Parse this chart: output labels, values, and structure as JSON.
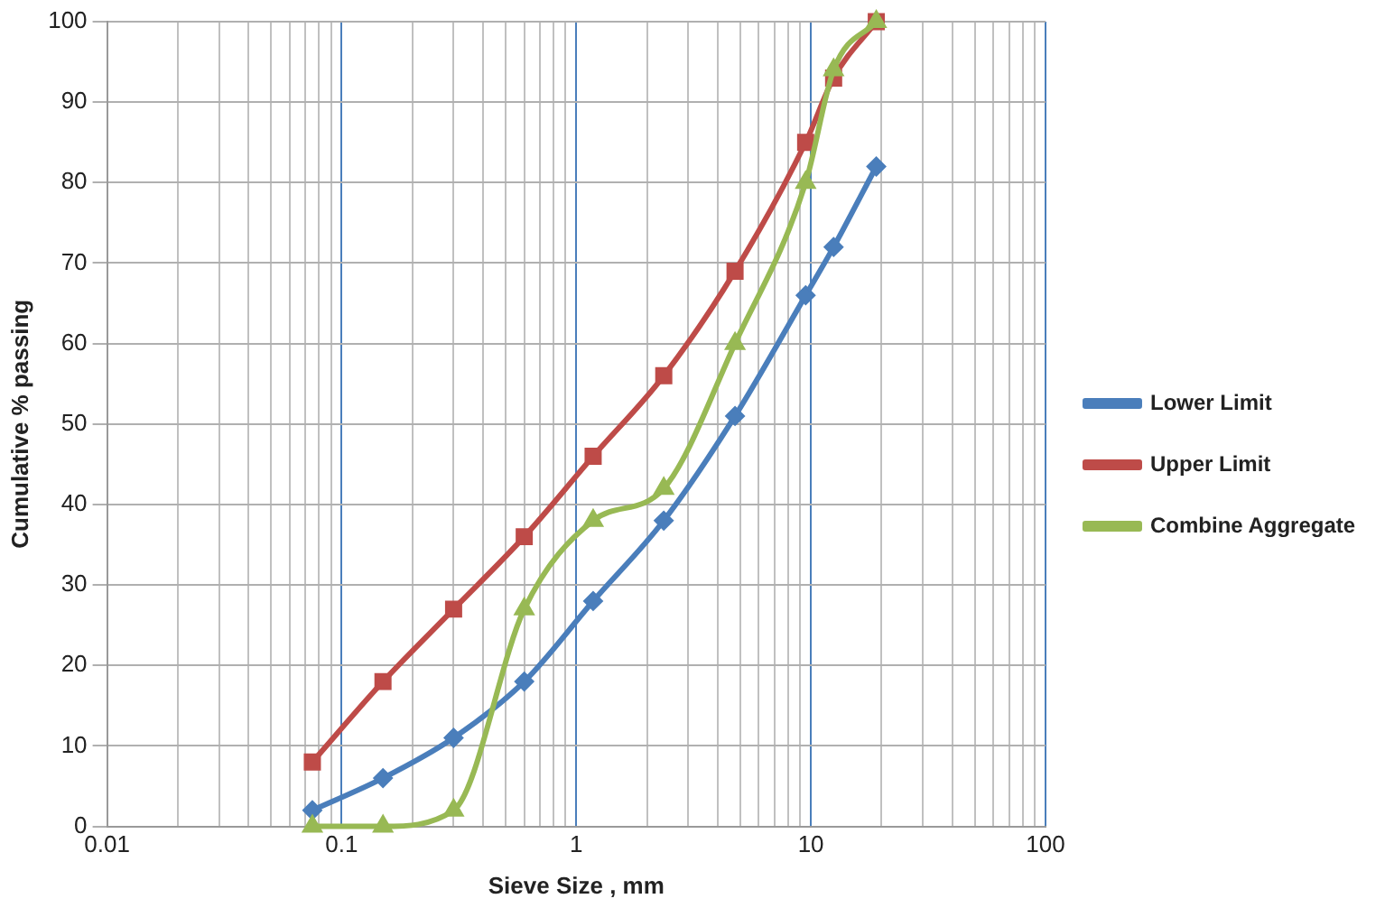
{
  "chart_data": {
    "type": "line",
    "xlabel": "Sieve Size , mm",
    "ylabel": "Cumulative % passing",
    "x": [
      0.075,
      0.15,
      0.3,
      0.6,
      1.18,
      2.36,
      4.75,
      9.5,
      12.5,
      19
    ],
    "series": [
      {
        "name": "Lower Limit",
        "color": "#4a7ebb",
        "marker": "diamond",
        "values": [
          2,
          6,
          11,
          18,
          28,
          38,
          51,
          66,
          72,
          82
        ]
      },
      {
        "name": "Upper Limit",
        "color": "#be4b48",
        "marker": "square",
        "values": [
          8,
          18,
          27,
          36,
          46,
          56,
          69,
          85,
          93,
          100
        ]
      },
      {
        "name": "Combine Aggregate",
        "color": "#98b954",
        "marker": "triangle",
        "values": [
          0,
          0,
          2,
          27,
          38,
          42,
          60,
          80,
          94,
          100
        ]
      }
    ],
    "log": "x",
    "xlim": [
      0.01,
      100
    ],
    "xticks": [
      0.01,
      {
        "value": 0.02,
        "label": null
      },
      {
        "value": 0.03,
        "label": null
      },
      {
        "value": 0.04,
        "label": null
      },
      {
        "value": 0.05,
        "label": null
      },
      {
        "value": 0.06,
        "label": null
      },
      {
        "value": 0.07,
        "label": null
      },
      {
        "value": 0.08,
        "label": null
      },
      {
        "value": 0.09,
        "label": null
      },
      0.1,
      {
        "value": 0.2,
        "label": null
      },
      {
        "value": 0.3,
        "label": null
      },
      {
        "value": 0.4,
        "label": null
      },
      {
        "value": 0.5,
        "label": null
      },
      {
        "value": 0.6,
        "label": null
      },
      {
        "value": 0.7,
        "label": null
      },
      {
        "value": 0.8,
        "label": null
      },
      {
        "value": 0.9,
        "label": null
      },
      1,
      {
        "value": 2,
        "label": null
      },
      {
        "value": 3,
        "label": null
      },
      {
        "value": 4,
        "label": null
      },
      {
        "value": 5,
        "label": null
      },
      {
        "value": 6,
        "label": null
      },
      {
        "value": 7,
        "label": null
      },
      {
        "value": 8,
        "label": null
      },
      {
        "value": 9,
        "label": null
      },
      10,
      {
        "value": 20,
        "label": null
      },
      {
        "value": 30,
        "label": null
      },
      {
        "value": 40,
        "label": null
      },
      {
        "value": 50,
        "label": null
      },
      {
        "value": 60,
        "label": null
      },
      {
        "value": 70,
        "label": null
      },
      {
        "value": 80,
        "label": null
      },
      {
        "value": 90,
        "label": null
      },
      100
    ],
    "ylim": [
      0,
      100
    ],
    "yticks": [
      0,
      10,
      20,
      30,
      40,
      50,
      60,
      70,
      80,
      90,
      100
    ],
    "grid": true,
    "legend": "right"
  }
}
